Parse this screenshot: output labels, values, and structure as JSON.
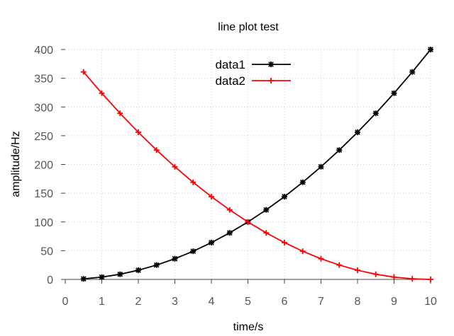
{
  "chart_data": {
    "type": "line",
    "title": "line plot test",
    "xlabel": "time/s",
    "ylabel": "amplitude/Hz",
    "xlim": [
      0,
      10
    ],
    "ylim": [
      0,
      400
    ],
    "grid": true,
    "legend_position": "top-center",
    "x_ticks": [
      "0",
      "1",
      "2",
      "3",
      "4",
      "5",
      "6",
      "7",
      "8",
      "9",
      "10"
    ],
    "y_ticks": [
      "0",
      "50",
      "100",
      "150",
      "200",
      "250",
      "300",
      "350",
      "400"
    ],
    "x": [
      0.5,
      1,
      1.5,
      2,
      2.5,
      3,
      3.5,
      4,
      4.5,
      5,
      5.5,
      6,
      6.5,
      7,
      7.5,
      8,
      8.5,
      9,
      9.5,
      10
    ],
    "series": [
      {
        "name": "data1",
        "color": "#000000",
        "marker": "star",
        "values": [
          1,
          4,
          9,
          16,
          25,
          36,
          49,
          64,
          81,
          100,
          121,
          144,
          169,
          196,
          225,
          256,
          289,
          324,
          361,
          400
        ]
      },
      {
        "name": "data2",
        "color": "#ff0000",
        "marker": "plus",
        "values": [
          361,
          324,
          289,
          256,
          225,
          196,
          169,
          144,
          121,
          100,
          81,
          64,
          49,
          36,
          25,
          16,
          9,
          4,
          1,
          0
        ]
      }
    ]
  }
}
